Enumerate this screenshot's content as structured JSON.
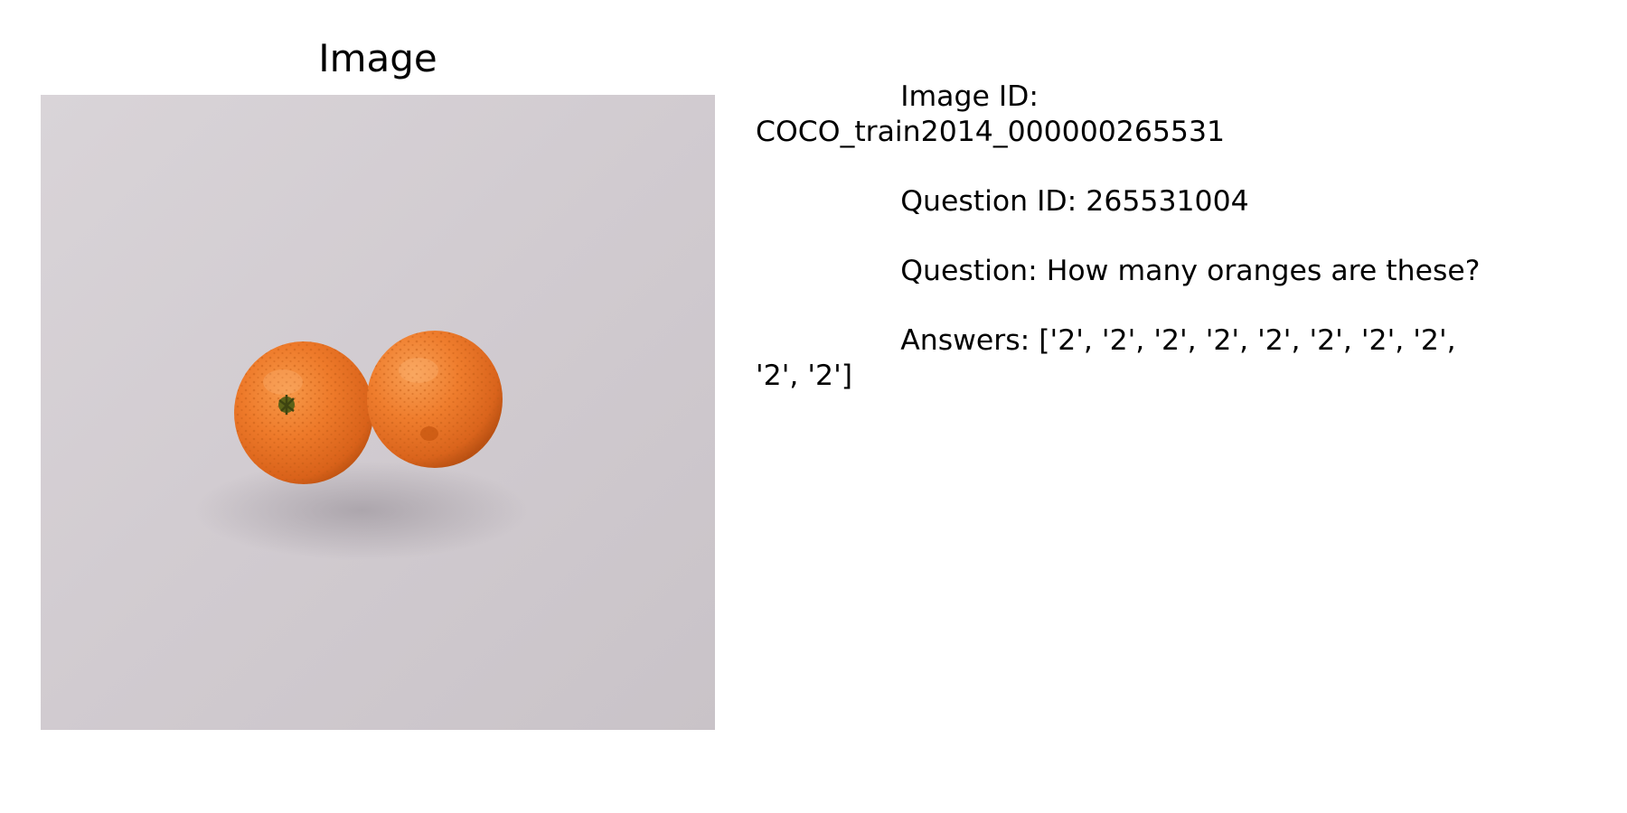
{
  "figure": {
    "panel_title": "Image",
    "photo": {
      "subject": "two orange mandarin oranges on a light gray fabric backdrop",
      "colors": {
        "background": "#d3cdd2",
        "orange": "#ec7424",
        "orange_dark": "#c95912",
        "stem": "#5b6218"
      }
    },
    "info": {
      "image_id_label": "                Image ID:",
      "image_id_value": "COCO_train2014_000000265531",
      "question_id": "                Question ID: 265531004",
      "question": "                Question: How many oranges are these?",
      "answers_line1": "                Answers: ['2', '2', '2', '2', '2', '2', '2', '2',",
      "answers_line2": "'2', '2']"
    }
  }
}
